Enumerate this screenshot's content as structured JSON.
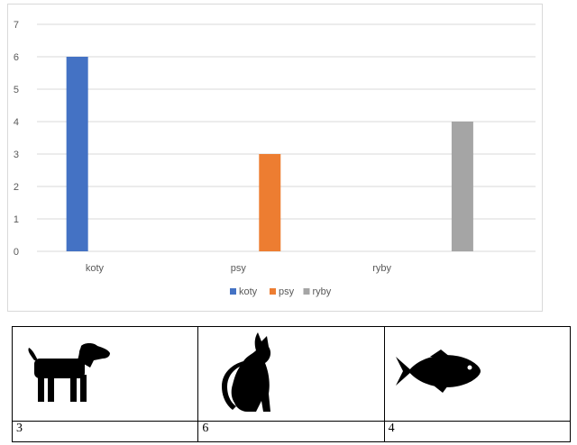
{
  "chart_data": {
    "type": "bar",
    "categories": [
      "koty",
      "psy",
      "ryby"
    ],
    "series": [
      {
        "name": "koty",
        "color": "#4472C4",
        "values": [
          6,
          null,
          null
        ]
      },
      {
        "name": "psy",
        "color": "#ED7D31",
        "values": [
          null,
          3,
          null
        ]
      },
      {
        "name": "ryby",
        "color": "#A5A5A5",
        "values": [
          null,
          null,
          4
        ]
      }
    ],
    "yticks": [
      0,
      1,
      2,
      3,
      4,
      5,
      6,
      7
    ],
    "ylim": [
      0,
      7
    ],
    "grid": true,
    "legend": "bottom",
    "title": "",
    "xlabel": "",
    "ylabel": ""
  },
  "table": {
    "icons": [
      "dog-icon",
      "cat-icon",
      "fish-icon"
    ],
    "counts": [
      "3",
      "6",
      "4"
    ]
  }
}
